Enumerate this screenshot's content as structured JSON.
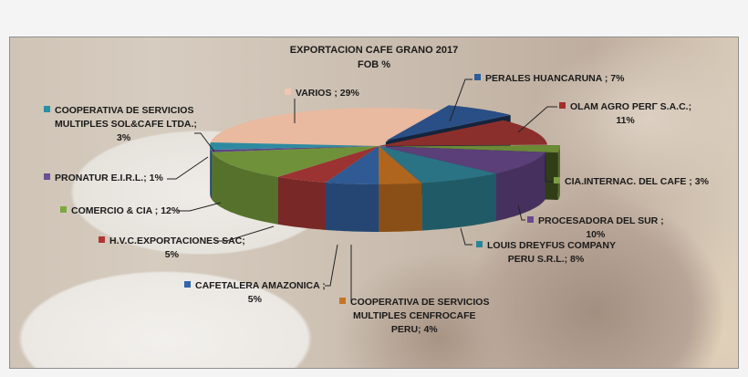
{
  "chart_data": {
    "type": "pie",
    "style": "3d-exploded",
    "title": "EXPORTACION  CAFE GRANO 2017",
    "subtitle": "FOB %",
    "unit": "%",
    "categories": [
      "VARIOS",
      "PERALES HUANCARUNA",
      "OLAM AGRO PERΓ S.A.C.",
      "CIA.INTERNAC. DEL CAFE",
      "PROCESADORA DEL SUR",
      "LOUIS DREYFUS COMPANY PERU S.R.L.",
      "COOPERATIVA DE SERVICIOS MULTIPLES CENFROCAFE PERU",
      "CAFETALERA AMAZONICA",
      "H.V.C.EXPORTACIONES SAC",
      "COMERCIO & CIA",
      "PRONATUR E.I.R.L.",
      "COOPERATIVA DE SERVICIOS MULTIPLES SOL&CAFE LTDA."
    ],
    "values": [
      29,
      7,
      11,
      3,
      10,
      8,
      4,
      5,
      5,
      12,
      1,
      3
    ],
    "colors": [
      "#e9b9a0",
      "#2a4f86",
      "#8b2f2c",
      "#6b8a36",
      "#5a3f78",
      "#2a7384",
      "#b0651e",
      "#2f5a93",
      "#9a3331",
      "#6e9139",
      "#5c4681",
      "#2e8aa0"
    ],
    "exploded": [
      "PERALES HUANCARUNA",
      "CIA.INTERNAC. DEL CAFE"
    ],
    "legend": "data-labels-with-leader-lines"
  },
  "title": {
    "line1": "EXPORTACION  CAFE GRANO 2017",
    "line2": "FOB %"
  },
  "labels": {
    "varios": "VARIOS ; 29%",
    "perales": "PERALES HUANCARUNA ; 7%",
    "olam_1": "OLAM AGRO PERΓ S.A.C.;",
    "olam_2": "11%",
    "cia": "CIA.INTERNAC. DEL CAFE ; 3%",
    "procesadora_1": "PROCESADORA DEL SUR ;",
    "procesadora_2": "10%",
    "louis_1": "LOUIS DREYFUS COMPANY",
    "louis_2": "PERU S.R.L.; 8%",
    "cenfro_1": "COOPERATIVA DE SERVICIOS",
    "cenfro_2": "MULTIPLES CENFROCAFE",
    "cenfro_3": "PERU; 4%",
    "cafetalera_1": "CAFETALERA AMAZONICA ;",
    "cafetalera_2": "5%",
    "hvc_1": "H.V.C.EXPORTACIONES SAC;",
    "hvc_2": "5%",
    "comercio": "COMERCIO & CIA ; 12%",
    "pronatur": "PRONATUR E.I.R.L.; 1%",
    "solcafe_1": "COOPERATIVA DE SERVICIOS",
    "solcafe_2": "MULTIPLES SOL&CAFE LTDA.;",
    "solcafe_3": "3%"
  }
}
